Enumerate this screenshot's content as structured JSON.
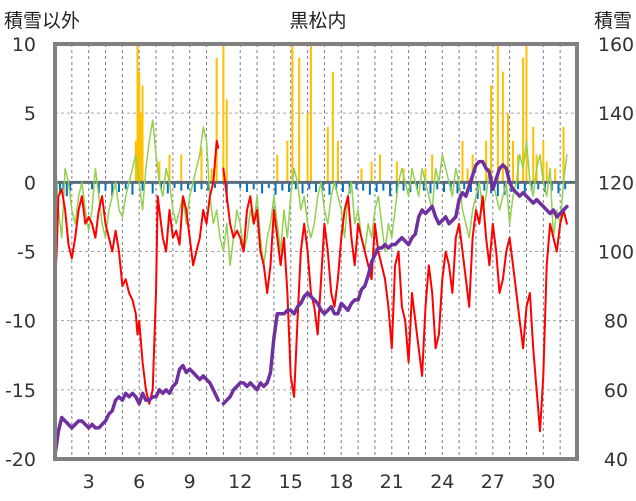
{
  "chart_data": {
    "type": "line",
    "title": "黒松内",
    "ylabel_left": "積雪以外",
    "ylabel_right": "積雪",
    "xlim": [
      1,
      32
    ],
    "ylim_left": [
      -20,
      10
    ],
    "ylim_right": [
      40,
      160
    ],
    "x_ticks": [
      3,
      6,
      9,
      12,
      15,
      18,
      21,
      24,
      27,
      30
    ],
    "y_ticks_left": [
      -20,
      -15,
      -10,
      -5,
      0,
      5,
      10
    ],
    "y_ticks_right": [
      40,
      60,
      80,
      100,
      120,
      140,
      160
    ],
    "grid": true,
    "legend": "none",
    "colors": {
      "temperature": "#ff0000",
      "dewpoint": "#92d050",
      "snow_depth": "#7030a0",
      "precipitation": "#ffc000",
      "snow_change": "#0070c0",
      "frame": "#808080"
    },
    "series": [
      {
        "axis": "left",
        "kind": "line",
        "color": "#ff0000",
        "width": 2,
        "x": [
          1,
          1.1,
          1.2,
          1.4,
          1.6,
          1.8,
          2.0,
          2.2,
          2.4,
          2.6,
          2.8,
          3.0,
          3.2,
          3.4,
          3.6,
          3.8,
          4.0,
          4.2,
          4.4,
          4.6,
          4.8,
          5.0,
          5.2,
          5.4,
          5.6,
          5.8,
          5.9,
          6.0,
          6.2,
          6.4,
          6.6,
          6.8,
          7.0,
          7.1,
          7.2,
          7.4,
          7.6,
          7.8,
          8.0,
          8.2,
          8.4,
          8.6,
          8.8,
          9.0,
          9.2,
          9.4,
          9.6,
          9.8,
          10.0,
          10.2,
          10.4,
          10.6,
          10.7
        ],
        "y": [
          -7.5,
          -5,
          -1,
          -0.5,
          -2,
          -4.5,
          -5.5,
          -4,
          -2,
          -1,
          -3,
          -2.5,
          -3,
          -4,
          -2,
          -1,
          -3,
          -4,
          -5,
          -3.5,
          -5,
          -7.5,
          -7,
          -8,
          -8.5,
          -9.5,
          -11,
          -10,
          -13,
          -15,
          -16,
          -15,
          -8,
          -1,
          -2,
          -4,
          -5,
          -2,
          -4,
          -3.5,
          -4.5,
          -1,
          -2,
          -4,
          -6,
          -5,
          -4,
          -2,
          -3,
          -1,
          0,
          3,
          2.5
        ]
      },
      {
        "axis": "left",
        "kind": "line",
        "color": "#ff0000",
        "width": 2,
        "x": [
          11.0,
          11.2,
          11.4,
          11.6,
          11.8,
          12.0,
          12.2,
          12.4,
          12.6,
          12.8,
          13.0,
          13.2,
          13.4,
          13.6,
          13.8,
          14.0,
          14.2,
          14.4,
          14.6,
          14.8,
          15.0,
          15.2,
          15.4,
          15.6,
          15.8,
          16.0,
          16.2,
          16.4,
          16.6,
          16.8,
          17.0,
          17.2,
          17.4,
          17.6,
          17.8,
          18.0,
          18.2,
          18.4,
          18.6,
          18.8,
          19.0,
          19.2,
          19.4,
          19.6,
          19.8,
          20.0,
          20.2,
          20.4,
          20.6,
          20.8,
          21.0,
          21.2,
          21.4,
          21.6,
          21.8,
          22.0,
          22.2,
          22.4,
          22.6,
          22.8,
          23.0,
          23.2,
          23.4,
          23.6,
          23.8,
          24.0,
          24.2,
          24.4,
          24.6,
          24.8,
          25.0,
          25.2,
          25.4,
          25.6,
          25.8,
          26.0,
          26.2,
          26.4,
          26.6,
          26.8,
          27.0,
          27.2,
          27.4,
          27.6,
          27.8,
          28.0,
          28.2,
          28.4,
          28.6,
          28.8,
          29.0,
          29.2,
          29.4,
          29.6,
          29.8,
          30.0,
          30.2,
          30.4,
          30.6,
          30.8,
          31.0,
          31.2,
          31.4
        ],
        "y": [
          1,
          -1,
          -3,
          -4,
          -3.5,
          -4,
          -5,
          -2,
          -1,
          -3,
          -2,
          -5,
          -6,
          -8,
          -6,
          -2,
          -4,
          -6,
          -4,
          -8,
          -14,
          -15.5,
          -10,
          -5,
          -3,
          -5,
          -8,
          -9,
          -11,
          -7,
          -3,
          -5,
          -8,
          -9,
          -7,
          -4,
          -2,
          -1,
          -4,
          -6,
          -3,
          -4,
          -5,
          -6,
          -7,
          -3,
          -5,
          -6,
          -7,
          -9,
          -12,
          -6,
          -5,
          -9,
          -10,
          -13,
          -8,
          -10,
          -12,
          -14,
          -9,
          -6,
          -8,
          -12,
          -11,
          -7,
          -5,
          -6,
          -8,
          -4,
          -3,
          -5,
          -7,
          -9,
          -4,
          -2,
          -3,
          -1,
          -4,
          -6,
          -3,
          -5,
          -8,
          -7,
          -5,
          -4,
          -6,
          -8,
          -10,
          -12,
          -9,
          -8,
          -12,
          -15,
          -18,
          -14,
          -6,
          -3,
          -4,
          -5,
          -3,
          -2,
          -3
        ]
      },
      {
        "axis": "left",
        "kind": "line",
        "color": "#92d050",
        "width": 1.5,
        "x": [
          1,
          1.2,
          1.4,
          1.6,
          1.8,
          2.0,
          2.2,
          2.4,
          2.6,
          2.8,
          3.0,
          3.2,
          3.4,
          3.6,
          3.8,
          4.0,
          4.2,
          4.4,
          4.6,
          4.8,
          5.0,
          5.2,
          5.4,
          5.6,
          5.8,
          6.0,
          6.2,
          6.4,
          6.6,
          6.8,
          7.0,
          7.2,
          7.4,
          7.6,
          7.8,
          8.0,
          8.2,
          8.4,
          8.6,
          8.8,
          9.0,
          9.2,
          9.4,
          9.6,
          9.8,
          10.0,
          10.2,
          10.4,
          10.6,
          10.8,
          11.0,
          11.2,
          11.4,
          11.6,
          11.8,
          12.0,
          12.2,
          12.4,
          12.6,
          12.8,
          13.0,
          13.2,
          13.4,
          13.6,
          13.8,
          14.0,
          14.2,
          14.4,
          14.6,
          14.8,
          15.0,
          15.2,
          15.4,
          15.6,
          15.8,
          16.0,
          16.2,
          16.4,
          16.6,
          16.8,
          17.0,
          17.2,
          17.4,
          17.6,
          17.8,
          18.0,
          18.2,
          18.4,
          18.6,
          18.8,
          19.0,
          19.2,
          19.4,
          19.6,
          19.8,
          20.0,
          20.2,
          20.4,
          20.6,
          20.8,
          21.0,
          21.2,
          21.4,
          21.6,
          21.8,
          22.0,
          22.2,
          22.4,
          22.6,
          22.8,
          23.0,
          23.2,
          23.4,
          23.6,
          23.8,
          24.0,
          24.2,
          24.4,
          24.6,
          24.8,
          25.0,
          25.2,
          25.4,
          25.6,
          25.8,
          26.0,
          26.2,
          26.4,
          26.6,
          26.8,
          27.0,
          27.2,
          27.4,
          27.6,
          27.8,
          28.0,
          28.2,
          28.4,
          28.6,
          28.8,
          29.0,
          29.2,
          29.4,
          29.6,
          29.8,
          30.0,
          30.2,
          30.4,
          30.6,
          30.8,
          31.0,
          31.2,
          31.4
        ],
        "y": [
          2,
          -2,
          -4,
          1,
          0,
          -2,
          -3,
          -1,
          0,
          -2,
          -3.5,
          -2,
          1,
          -1,
          -3,
          -4,
          -2,
          -1,
          0,
          -2,
          -2.5,
          -1,
          0,
          1,
          2,
          0,
          -2,
          1,
          3,
          4.5,
          2,
          0,
          -1,
          1,
          0,
          -2,
          -3,
          -2,
          -1,
          -3,
          -1,
          0,
          1,
          2,
          4,
          3,
          -1,
          -3,
          -2,
          -4,
          -5,
          -3,
          -6,
          -4,
          -2,
          -3,
          -5,
          -4,
          -2,
          -3,
          -1,
          -4,
          -6,
          -4,
          -3,
          -1,
          -3,
          -5,
          -2,
          -4,
          -1,
          1,
          0,
          -2,
          -1,
          -3,
          -4,
          -3,
          -1,
          0,
          -2,
          -3,
          -1,
          0,
          -1,
          -2,
          -4,
          -1,
          0,
          -3,
          -2,
          -4,
          -5,
          -3,
          -4,
          -2,
          -1,
          -3,
          -5,
          -3,
          -4,
          -2,
          0,
          1,
          0,
          -1,
          1,
          0,
          -1,
          1,
          0,
          -1,
          -2,
          1,
          0,
          2,
          1,
          0,
          -1,
          1,
          0,
          -2,
          -3,
          -4,
          -2,
          -1,
          0,
          -2,
          -1,
          1,
          0,
          -1,
          -2,
          -1,
          0,
          -3,
          -1,
          0,
          2,
          1,
          3,
          0,
          -1,
          1,
          2,
          0,
          -1,
          1,
          -4,
          -2,
          -3,
          0,
          2
        ]
      },
      {
        "axis": "right",
        "kind": "line",
        "color": "#7030a0",
        "width": 3.5,
        "x": [
          1,
          1.2,
          1.4,
          1.6,
          1.8,
          2.0,
          2.2,
          2.4,
          2.6,
          2.8,
          3.0,
          3.2,
          3.4,
          3.6,
          3.8,
          4.0,
          4.2,
          4.4,
          4.6,
          4.8,
          5.0,
          5.2,
          5.4,
          5.6,
          5.8,
          6.0,
          6.2,
          6.4,
          6.6,
          6.8,
          7.0,
          7.2,
          7.4,
          7.6,
          7.8,
          8.0,
          8.2,
          8.4,
          8.6,
          8.8,
          9.0,
          9.2,
          9.4,
          9.6,
          9.8,
          10.0,
          10.2,
          10.4,
          10.6,
          10.7
        ],
        "y": [
          41,
          48,
          52,
          51,
          50,
          49,
          50,
          51,
          51,
          50,
          49,
          50,
          49,
          49,
          50,
          51,
          53,
          54,
          57,
          58,
          57,
          59,
          58,
          59,
          58,
          56,
          59,
          57,
          57,
          58,
          58,
          60,
          59,
          60,
          59,
          61,
          62,
          66,
          67,
          65,
          66,
          65,
          64,
          63,
          64,
          63,
          62,
          60,
          58,
          57
        ]
      },
      {
        "axis": "right",
        "kind": "line",
        "color": "#7030a0",
        "width": 3.5,
        "x": [
          11.0,
          11.2,
          11.4,
          11.6,
          11.8,
          12.0,
          12.2,
          12.4,
          12.6,
          12.8,
          13.0,
          13.2,
          13.4,
          13.6,
          13.8,
          14.0,
          14.2,
          14.4,
          14.6,
          14.8,
          15.0,
          15.2,
          15.4,
          15.6,
          15.8,
          16.0,
          16.2,
          16.4,
          16.6,
          16.8,
          17.0,
          17.2,
          17.4,
          17.6,
          17.8,
          18.0,
          18.2,
          18.4,
          18.6,
          18.8,
          19.0,
          19.2,
          19.4,
          19.6,
          19.8,
          20.0,
          20.2,
          20.4,
          20.6,
          20.8,
          21.0,
          21.2,
          21.4,
          21.6,
          21.8,
          22.0,
          22.2,
          22.4,
          22.6,
          22.8,
          23.0,
          23.2,
          23.4,
          23.6,
          23.8,
          24.0,
          24.2,
          24.4,
          24.6,
          24.8,
          25.0,
          25.2,
          25.4,
          25.6,
          25.8,
          26.0,
          26.2,
          26.4,
          26.6,
          26.8,
          27.0,
          27.2,
          27.4,
          27.6,
          27.8,
          28.0,
          28.2,
          28.4,
          28.6,
          28.8,
          29.0,
          29.2,
          29.4,
          29.6,
          29.8,
          30.0,
          30.2,
          30.4,
          30.6,
          30.8,
          31.0,
          31.2,
          31.4
        ],
        "y": [
          56,
          57,
          58,
          60,
          61,
          62,
          62,
          61,
          62,
          61,
          60,
          62,
          61,
          62,
          65,
          75,
          82,
          82,
          82,
          83,
          83,
          82,
          84,
          85,
          87,
          88,
          87,
          86,
          85,
          83,
          82,
          83,
          84,
          82,
          82,
          85,
          84,
          83,
          85,
          86,
          86,
          89,
          90,
          93,
          97,
          99,
          101,
          101,
          102,
          101,
          102,
          102,
          103,
          104,
          103,
          102,
          104,
          105,
          110,
          112,
          111,
          112,
          113,
          110,
          108,
          109,
          110,
          108,
          109,
          110,
          115,
          117,
          116,
          119,
          122,
          125,
          126,
          126,
          124,
          123,
          118,
          121,
          124,
          125,
          124,
          120,
          118,
          117,
          116,
          117,
          116,
          115,
          114,
          115,
          114,
          113,
          112,
          111,
          112,
          110,
          111,
          112,
          113
        ]
      },
      {
        "axis": "left",
        "kind": "bar",
        "color": "#ffc000",
        "baseline": 0,
        "x": [
          5.8,
          5.9,
          6.0,
          6.1,
          6.2,
          7.2,
          7.8,
          8.5,
          9.7,
          10.3,
          10.6,
          11.0,
          11.2,
          14.2,
          14.8,
          15.1,
          15.5,
          16.0,
          16.2,
          17.2,
          17.5,
          17.8,
          19.2,
          19.8,
          20.3,
          21.3,
          21.7,
          23.0,
          23.4,
          25.2,
          25.5,
          25.8,
          26.6,
          26.9,
          27.3,
          27.6,
          27.9,
          28.2,
          28.5,
          28.8,
          29.0,
          29.4,
          29.6,
          30.0,
          30.2,
          30.7,
          31.2
        ],
        "y": [
          3,
          10,
          8,
          5,
          7,
          1.5,
          2,
          2,
          2.5,
          1,
          9,
          10,
          6,
          2,
          3,
          10,
          9,
          5,
          10,
          4,
          8,
          3,
          1,
          1.5,
          2,
          1.5,
          1,
          1,
          2,
          3,
          1,
          2,
          3,
          7,
          10,
          8,
          5,
          3,
          2,
          9,
          10,
          4,
          2,
          3,
          1.5,
          1,
          4
        ]
      },
      {
        "axis": "left",
        "kind": "bar",
        "color": "#0070c0",
        "baseline": 0,
        "x": [
          1.1,
          1.3,
          1.5,
          1.7,
          1.9,
          3.2,
          3.6,
          4.0,
          4.4,
          4.8,
          5.2,
          5.6,
          6.2,
          6.8,
          7.3,
          7.7,
          8.1,
          8.5,
          8.9,
          9.3,
          9.7,
          10.1,
          10.5,
          11.2,
          12.0,
          12.4,
          12.8,
          13.3,
          13.7,
          14.1,
          14.5,
          14.9,
          15.3,
          15.7,
          16.1,
          16.5,
          16.9,
          17.3,
          17.7,
          18.1,
          18.5,
          18.9,
          19.3,
          19.7,
          20.1,
          20.5,
          20.9,
          21.3,
          21.7,
          22.1,
          22.5,
          22.9,
          23.3,
          23.7,
          24.1,
          24.5,
          24.9,
          25.3,
          25.7,
          26.1,
          26.5,
          26.9,
          27.3,
          27.7,
          28.1,
          28.5,
          28.9,
          29.3,
          29.7,
          30.1,
          30.5,
          30.9,
          31.3
        ],
        "y": [
          -1.5,
          -0.8,
          -0.5,
          -1,
          -0.6,
          -0.5,
          -0.8,
          -0.6,
          -1,
          -0.7,
          -0.5,
          -0.9,
          -0.6,
          -0.8,
          -0.5,
          -0.8,
          -0.4,
          -0.6,
          -0.5,
          -0.7,
          -0.5,
          -0.6,
          -0.4,
          -1.5,
          -0.4,
          -0.7,
          -0.5,
          -0.8,
          -0.4,
          -0.9,
          -0.6,
          -0.7,
          -0.5,
          -0.8,
          -0.5,
          -0.7,
          -0.6,
          -0.9,
          -0.5,
          -0.7,
          -0.8,
          -0.5,
          -0.6,
          -0.9,
          -0.7,
          -0.6,
          -1,
          -0.8,
          -0.6,
          -0.7,
          -0.5,
          -0.6,
          -0.8,
          -0.5,
          -0.7,
          -0.6,
          -0.8,
          -0.5,
          -0.7,
          -1.2,
          -0.6,
          -0.8,
          -1,
          -0.9,
          -0.7,
          -0.5,
          -0.8,
          -0.6,
          -0.5,
          -0.7,
          -0.6,
          -0.8,
          -0.5
        ]
      }
    ]
  }
}
